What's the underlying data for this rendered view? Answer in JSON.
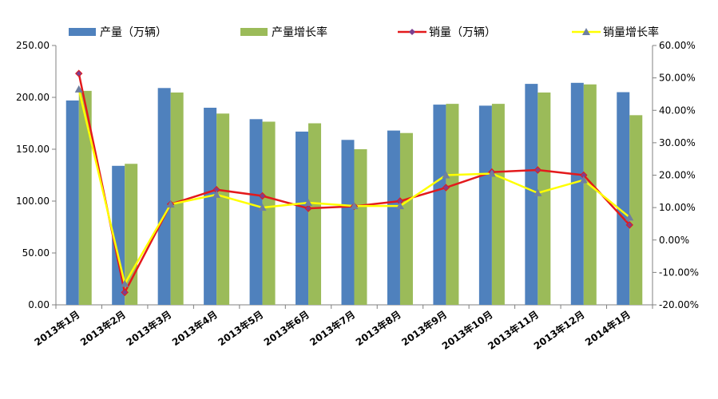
{
  "chart_data": {
    "type": "bar",
    "categories": [
      "2013年1月",
      "2013年2月",
      "2013年3月",
      "2013年4月",
      "2013年5月",
      "2013年6月",
      "2013年7月",
      "2013年8月",
      "2013年9月",
      "2013年10月",
      "2013年11月",
      "2013年12月",
      "2014年1月"
    ],
    "series": [
      {
        "name": "产量（万辆）",
        "type": "bar",
        "axis": "left",
        "color": "#4F81BD",
        "values": [
          197,
          134,
          209,
          190,
          179,
          167,
          159,
          168,
          193,
          192,
          213,
          214,
          205
        ]
      },
      {
        "name": "产量增长率",
        "type": "bar",
        "axis": "right",
        "color": "#9BBB59",
        "values": [
          46.0,
          23.5,
          45.5,
          39.0,
          36.5,
          36.0,
          28.0,
          33.0,
          42.0,
          42.0,
          45.5,
          48.0,
          38.5
        ]
      },
      {
        "name": "销量（万辆）",
        "type": "line",
        "axis": "left",
        "color": "#E31A1C",
        "marker": "diamond",
        "marker_color": "#7B3F8F",
        "values": [
          223,
          12,
          97,
          111,
          105,
          93,
          95,
          100,
          113,
          128,
          130,
          125,
          77
        ]
      },
      {
        "name": "销量增长率",
        "type": "line",
        "axis": "right",
        "color": "#FFFF00",
        "marker": "triangle",
        "marker_color": "#6E7FA0",
        "values": [
          46.5,
          -13.5,
          11.0,
          14.0,
          10.0,
          11.5,
          10.5,
          10.5,
          20.0,
          20.5,
          14.5,
          18.5,
          7.0
        ]
      }
    ],
    "y_left": {
      "min": 0,
      "max": 250,
      "step": 50,
      "tick_labels": [
        "0.00",
        "50.00",
        "100.00",
        "150.00",
        "200.00",
        "250.00"
      ]
    },
    "y_right": {
      "min": -20,
      "max": 60,
      "step": 10,
      "tick_labels": [
        "-20.00%",
        "-10.00%",
        "0.00%",
        "10.00%",
        "20.00%",
        "30.00%",
        "40.00%",
        "50.00%",
        "60.00%"
      ]
    },
    "legend": "top",
    "grid": false
  }
}
